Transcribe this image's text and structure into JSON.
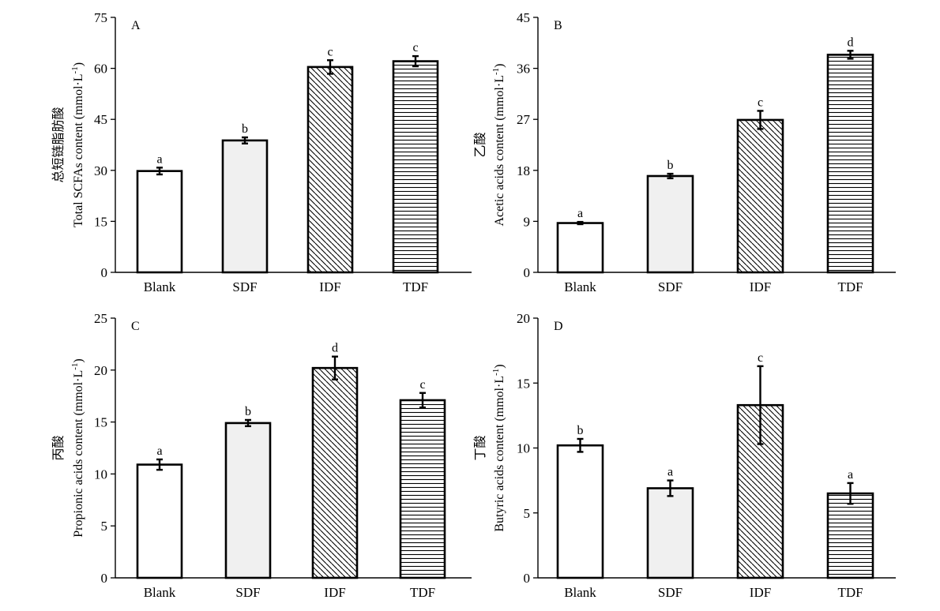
{
  "chart_data": [
    {
      "type": "bar",
      "panel_label": "A",
      "ylabel_cn": "总短链脂肪酸",
      "ylabel": "Total SCFAs content (mmol·L",
      "ylabel_sup": "-1",
      "ylabel_close": ")",
      "ylim": [
        0,
        75
      ],
      "yticks": [
        0,
        15,
        30,
        45,
        60,
        75
      ],
      "categories": [
        "Blank",
        "SDF",
        "IDF",
        "TDF"
      ],
      "values": [
        29.8,
        38.8,
        60.4,
        62.1
      ],
      "errors": [
        1.0,
        0.9,
        2.0,
        1.5
      ],
      "letters": [
        "a",
        "b",
        "c",
        "c"
      ]
    },
    {
      "type": "bar",
      "panel_label": "B",
      "ylabel_cn": "乙酸",
      "ylabel": "Acetic acids content (mmol·L",
      "ylabel_sup": "-1",
      "ylabel_close": ")",
      "ylim": [
        0,
        45
      ],
      "yticks": [
        0,
        9,
        18,
        27,
        36,
        45
      ],
      "categories": [
        "Blank",
        "SDF",
        "IDF",
        "TDF"
      ],
      "values": [
        8.7,
        17.0,
        26.9,
        38.4
      ],
      "errors": [
        0.2,
        0.4,
        1.6,
        0.7
      ],
      "letters": [
        "a",
        "b",
        "c",
        "d"
      ]
    },
    {
      "type": "bar",
      "panel_label": "C",
      "ylabel_cn": "丙酸",
      "ylabel": "Propionic acids content (mmol·L",
      "ylabel_sup": "-1",
      "ylabel_close": ")",
      "ylim": [
        0,
        25
      ],
      "yticks": [
        0,
        5,
        10,
        15,
        20,
        25
      ],
      "categories": [
        "Blank",
        "SDF",
        "IDF",
        "TDF"
      ],
      "values": [
        10.9,
        14.9,
        20.2,
        17.1
      ],
      "errors": [
        0.5,
        0.3,
        1.1,
        0.7
      ],
      "letters": [
        "a",
        "b",
        "d",
        "c"
      ]
    },
    {
      "type": "bar",
      "panel_label": "D",
      "ylabel_cn": "丁酸",
      "ylabel": "Butyric acids content (mmol·L",
      "ylabel_sup": "-1",
      "ylabel_close": ")",
      "ylim": [
        0,
        20
      ],
      "yticks": [
        0,
        5,
        10,
        15,
        20
      ],
      "categories": [
        "Blank",
        "SDF",
        "IDF",
        "TDF"
      ],
      "values": [
        10.2,
        6.9,
        13.3,
        6.5
      ],
      "errors": [
        0.5,
        0.6,
        3.0,
        0.8
      ],
      "letters": [
        "b",
        "a",
        "c",
        "a"
      ]
    }
  ],
  "style": {
    "bar_fills": [
      "white",
      "lightgray",
      "diagonal-hatch",
      "horizontal-hatch"
    ],
    "light_fill_color": "#f0f0f0",
    "ink_color": "#000000"
  }
}
